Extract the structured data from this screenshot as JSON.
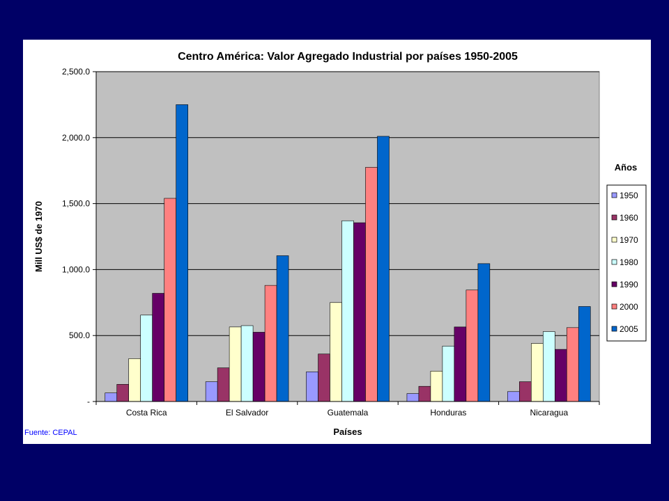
{
  "source": "Fuente: CEPAL",
  "chart_data": {
    "type": "bar",
    "title": "Centro América: Valor Agregado Industrial por países 1950-2005",
    "xlabel": "Países",
    "ylabel": "Mill US$ de 1970",
    "ylim": [
      0,
      2500
    ],
    "yticks": [
      0,
      500,
      1000,
      1500,
      2000,
      2500
    ],
    "ytick_labels": [
      "-",
      "500.0",
      "1,000.0",
      "1,500.0",
      "2,000.0",
      "2,500.0"
    ],
    "grid": true,
    "legend_title": "Años",
    "legend_position": "right",
    "categories": [
      "Costa Rica",
      "El Salvador",
      "Guatemala",
      "Honduras",
      "Nicaragua"
    ],
    "series": [
      {
        "name": "1950",
        "color": "#9999ff",
        "values": [
          65,
          150,
          225,
          60,
          75
        ]
      },
      {
        "name": "1960",
        "color": "#993366",
        "values": [
          130,
          255,
          360,
          115,
          150
        ]
      },
      {
        "name": "1970",
        "color": "#ffffcc",
        "values": [
          325,
          565,
          750,
          230,
          440
        ]
      },
      {
        "name": "1980",
        "color": "#ccffff",
        "values": [
          655,
          575,
          1370,
          420,
          530
        ]
      },
      {
        "name": "1990",
        "color": "#660066",
        "values": [
          820,
          525,
          1355,
          565,
          395
        ]
      },
      {
        "name": "2000",
        "color": "#ff8080",
        "values": [
          1540,
          880,
          1775,
          845,
          560
        ]
      },
      {
        "name": "2005",
        "color": "#0066cc",
        "values": [
          2250,
          1105,
          2010,
          1045,
          720
        ]
      }
    ]
  }
}
